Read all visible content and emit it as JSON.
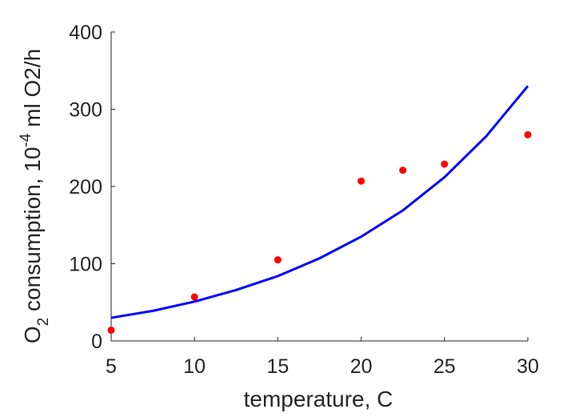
{
  "chart_data": {
    "type": "scatter",
    "xlabel": "temperature, C",
    "ylabel": {
      "prefix": "O",
      "sub": "2",
      "middle": " consumption, 10",
      "sup": "-4",
      "suffix": " ml O2/h"
    },
    "xlim": [
      5,
      30
    ],
    "ylim": [
      0,
      400
    ],
    "xticks": [
      5,
      10,
      15,
      20,
      25,
      30
    ],
    "yticks": [
      0,
      100,
      200,
      300,
      400
    ],
    "grid": false,
    "series": [
      {
        "kind": "points",
        "color": "#ff0000",
        "x": [
          5,
          10,
          15,
          20,
          22.5,
          25,
          30
        ],
        "y": [
          14,
          57,
          105,
          207,
          221,
          229,
          267
        ]
      },
      {
        "kind": "fitted-curve",
        "color": "#0000ff",
        "model": "exponential",
        "x": [
          5,
          7.5,
          10,
          12.5,
          15,
          17.5,
          20,
          22.5,
          25,
          27.5,
          30
        ],
        "y": [
          30,
          39,
          51,
          66,
          84,
          107,
          135,
          169,
          212,
          265,
          330
        ]
      }
    ]
  }
}
